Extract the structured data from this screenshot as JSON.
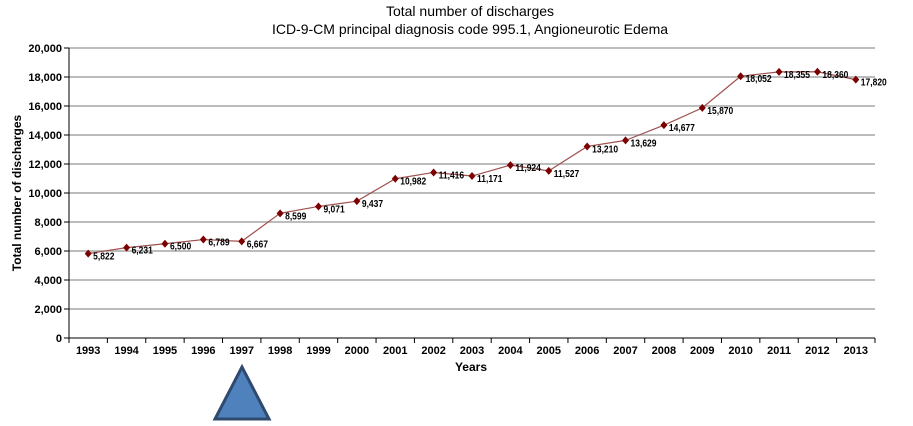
{
  "chart_data": {
    "type": "line",
    "title": "Total number of discharges",
    "subtitle": "ICD-9-CM principal diagnosis code 995.1, Angioneurotic Edema",
    "xlabel": "Years",
    "ylabel": "Total number of discharges",
    "ylim": [
      0,
      20000
    ],
    "yticks": [
      "0",
      "2,000",
      "4,000",
      "6,000",
      "8,000",
      "10,000",
      "12,000",
      "14,000",
      "16,000",
      "18,000",
      "20,000"
    ],
    "categories": [
      "1993",
      "1994",
      "1995",
      "1996",
      "1997",
      "1998",
      "1999",
      "2000",
      "2001",
      "2002",
      "2003",
      "2004",
      "2005",
      "2006",
      "2007",
      "2008",
      "2009",
      "2010",
      "2011",
      "2012",
      "2013"
    ],
    "values": [
      5822,
      6231,
      6500,
      6789,
      6667,
      8599,
      9071,
      9437,
      10982,
      11416,
      11171,
      11924,
      11527,
      13210,
      13629,
      14677,
      15870,
      18052,
      18355,
      18360,
      17820
    ],
    "labels": [
      "5,822",
      "6,231",
      "6,500",
      "6,789",
      "6,667",
      "8,599",
      "9,071",
      "9,437",
      "10,982",
      "11,416",
      "11,171",
      "11,924",
      "11,527",
      "13,210",
      "13,629",
      "14,677",
      "15,870",
      "18,052",
      "18,355",
      "18,360",
      "17,820"
    ],
    "grid": true,
    "line_color": "#a05050",
    "marker_color": "#7b0000"
  },
  "marker": {
    "shape": "triangle",
    "color": "#4f81bd"
  }
}
